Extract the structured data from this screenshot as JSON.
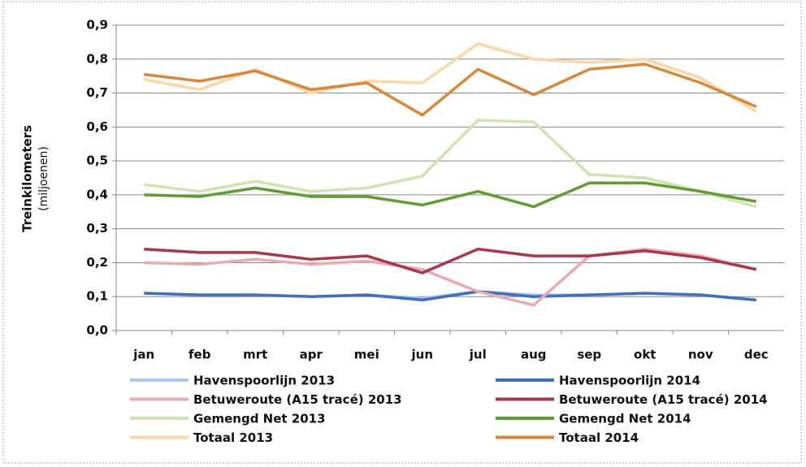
{
  "chart_data": {
    "type": "line",
    "y_label": "Treinkilometers",
    "y_label_unit": "(miljoenen)",
    "categories": [
      "jan",
      "feb",
      "mrt",
      "apr",
      "mei",
      "jun",
      "jul",
      "aug",
      "sep",
      "okt",
      "nov",
      "dec"
    ],
    "ylim": [
      0,
      0.9
    ],
    "yticks": [
      {
        "value": 0,
        "label": "0,0"
      },
      {
        "value": 0.1,
        "label": "0,1"
      },
      {
        "value": 0.2,
        "label": "0,2"
      },
      {
        "value": 0.3,
        "label": "0,3"
      },
      {
        "value": 0.4,
        "label": "0,4"
      },
      {
        "value": 0.5,
        "label": "0,5"
      },
      {
        "value": 0.6,
        "label": "0,6"
      },
      {
        "value": 0.7,
        "label": "0,7"
      },
      {
        "value": 0.8,
        "label": "0,8"
      },
      {
        "value": 0.9,
        "label": "0,9"
      }
    ],
    "grid": true,
    "legend": "bottom",
    "series": [
      {
        "name": "Havenspoorlijn 2013",
        "color": "#a9c8ea",
        "values": [
          0.11,
          0.105,
          0.105,
          0.1,
          0.105,
          0.095,
          0.115,
          0.105,
          0.105,
          0.11,
          0.105,
          0.09
        ]
      },
      {
        "name": "Havenspoorlijn 2014",
        "color": "#3f6fc4",
        "values": [
          0.11,
          0.105,
          0.105,
          0.1,
          0.105,
          0.09,
          0.115,
          0.1,
          0.105,
          0.11,
          0.105,
          0.09
        ]
      },
      {
        "name": "Betuweroute (A15 tracé) 2013",
        "color": "#eaaab0",
        "values": [
          0.2,
          0.195,
          0.21,
          0.195,
          0.205,
          0.18,
          0.115,
          0.075,
          0.22,
          0.24,
          0.22,
          0.18
        ]
      },
      {
        "name": "Betuweroute (A15 tracé) 2014",
        "color": "#b03448",
        "values": [
          0.24,
          0.23,
          0.23,
          0.21,
          0.22,
          0.17,
          0.24,
          0.22,
          0.22,
          0.235,
          0.215,
          0.18
        ]
      },
      {
        "name": "Gemengd Net 2013",
        "color": "#cfe4ae",
        "values": [
          0.43,
          0.41,
          0.44,
          0.41,
          0.42,
          0.455,
          0.62,
          0.615,
          0.46,
          0.45,
          0.41,
          0.365
        ]
      },
      {
        "name": "Gemengd Net 2014",
        "color": "#5e9e2e",
        "values": [
          0.4,
          0.395,
          0.42,
          0.395,
          0.395,
          0.37,
          0.41,
          0.365,
          0.435,
          0.435,
          0.41,
          0.38
        ]
      },
      {
        "name": "Totaal 2013",
        "color": "#fcd7a6",
        "values": [
          0.74,
          0.71,
          0.77,
          0.7,
          0.735,
          0.73,
          0.845,
          0.8,
          0.79,
          0.8,
          0.745,
          0.645
        ]
      },
      {
        "name": "Totaal 2014",
        "color": "#d98838",
        "values": [
          0.755,
          0.735,
          0.765,
          0.71,
          0.73,
          0.635,
          0.77,
          0.695,
          0.77,
          0.785,
          0.73,
          0.66
        ]
      }
    ]
  }
}
